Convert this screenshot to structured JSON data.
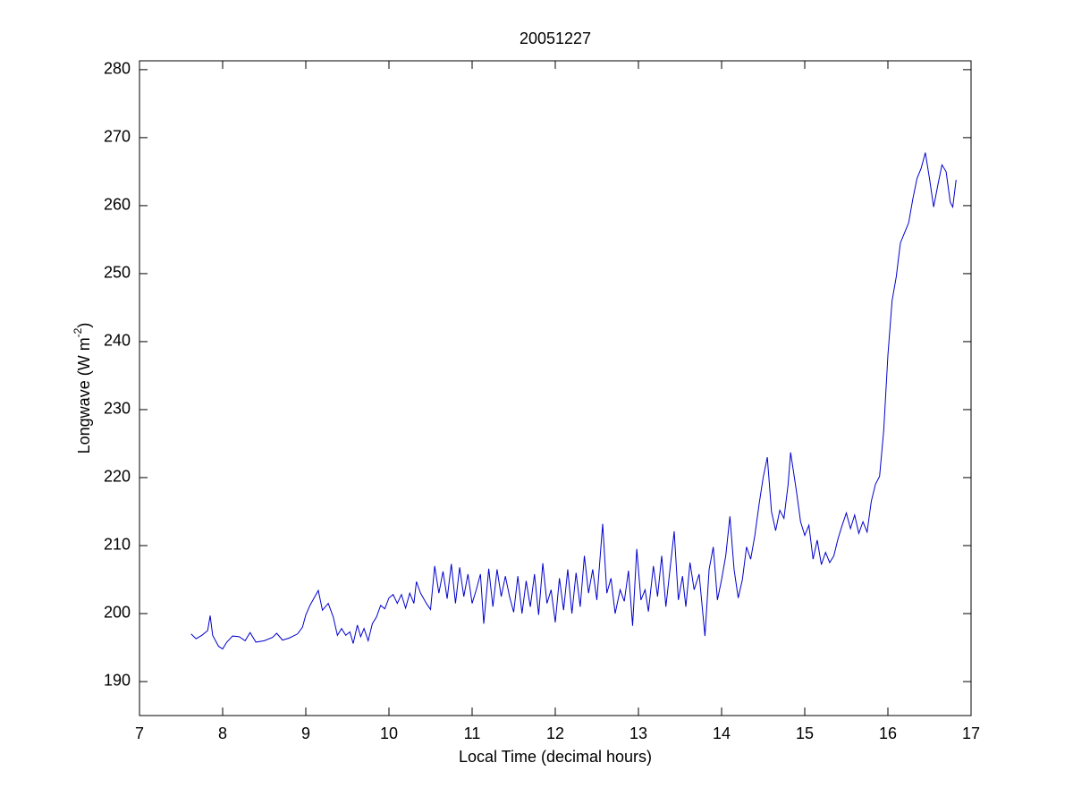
{
  "chart_data": {
    "type": "line",
    "title": "20051227",
    "x_label": "Local Time (decimal hours)",
    "y_label": {
      "text": "Longwave (W m",
      "sup": "-2",
      "end": ")"
    },
    "xlim": [
      7,
      17
    ],
    "xticks": [
      7,
      8,
      9,
      10,
      11,
      12,
      13,
      14,
      15,
      16,
      17
    ],
    "ylim": [
      185,
      281.3
    ],
    "yticks": [
      190,
      200,
      210,
      220,
      230,
      240,
      250,
      260,
      270,
      280
    ],
    "grid": false,
    "series": [
      {
        "color": "#0000cc",
        "x": [
          7.62,
          7.68,
          7.75,
          7.82,
          7.85,
          7.88,
          7.95,
          8.0,
          8.05,
          8.12,
          8.2,
          8.27,
          8.33,
          8.4,
          8.5,
          8.6,
          8.65,
          8.72,
          8.8,
          8.9,
          8.96,
          9.0,
          9.05,
          9.1,
          9.15,
          9.2,
          9.27,
          9.33,
          9.38,
          9.43,
          9.48,
          9.53,
          9.57,
          9.62,
          9.66,
          9.7,
          9.75,
          9.8,
          9.85,
          9.9,
          9.95,
          10.0,
          10.05,
          10.1,
          10.15,
          10.2,
          10.25,
          10.3,
          10.33,
          10.38,
          10.45,
          10.5,
          10.55,
          10.6,
          10.65,
          10.7,
          10.75,
          10.8,
          10.85,
          10.9,
          10.95,
          11.0,
          11.05,
          11.1,
          11.14,
          11.2,
          11.25,
          11.3,
          11.35,
          11.4,
          11.45,
          11.5,
          11.55,
          11.6,
          11.65,
          11.7,
          11.75,
          11.8,
          11.85,
          11.9,
          11.95,
          12.0,
          12.05,
          12.1,
          12.15,
          12.2,
          12.25,
          12.3,
          12.35,
          12.4,
          12.45,
          12.5,
          12.57,
          12.62,
          12.67,
          12.72,
          12.78,
          12.83,
          12.88,
          12.93,
          12.98,
          13.03,
          13.08,
          13.12,
          13.18,
          13.23,
          13.28,
          13.33,
          13.43,
          13.48,
          13.53,
          13.57,
          13.62,
          13.67,
          13.73,
          13.8,
          13.85,
          13.9,
          13.95,
          14.0,
          14.05,
          14.1,
          14.15,
          14.2,
          14.25,
          14.3,
          14.35,
          14.4,
          14.45,
          14.5,
          14.55,
          14.6,
          14.65,
          14.7,
          14.75,
          14.8,
          14.83,
          14.9,
          14.95,
          15.0,
          15.05,
          15.1,
          15.15,
          15.2,
          15.25,
          15.3,
          15.35,
          15.4,
          15.45,
          15.5,
          15.55,
          15.6,
          15.65,
          15.7,
          15.75,
          15.8,
          15.85,
          15.9,
          15.95,
          16.0,
          16.05,
          16.1,
          16.15,
          16.2,
          16.25,
          16.3,
          16.35,
          16.4,
          16.45,
          16.5,
          16.55,
          16.6,
          16.65,
          16.7,
          16.75,
          16.78,
          16.82
        ],
        "values": [
          197,
          196.3,
          196.8,
          197.5,
          199.7,
          196.8,
          195.2,
          194.8,
          195.8,
          196.7,
          196.6,
          196.0,
          197.2,
          195.8,
          196.0,
          196.5,
          197.1,
          196.1,
          196.4,
          197.0,
          198.0,
          199.8,
          201.2,
          202.3,
          203.4,
          200.5,
          201.5,
          199.5,
          196.8,
          197.8,
          196.8,
          197.3,
          195.6,
          198.3,
          196.6,
          197.8,
          196.0,
          198.5,
          199.5,
          201.2,
          200.7,
          202.3,
          202.8,
          201.5,
          202.8,
          200.8,
          203.0,
          201.5,
          204.7,
          203.0,
          201.5,
          200.6,
          207.0,
          203.0,
          206.2,
          202.2,
          207.3,
          201.5,
          206.8,
          202.5,
          205.8,
          201.5,
          203.5,
          205.8,
          198.5,
          206.6,
          201.0,
          206.5,
          202.5,
          205.5,
          202.5,
          200.2,
          205.5,
          200.0,
          204.8,
          201.0,
          205.8,
          199.8,
          207.4,
          201.5,
          203.5,
          198.7,
          205.2,
          200.5,
          206.5,
          200.0,
          206.0,
          201.0,
          208.5,
          203.0,
          206.5,
          202.0,
          213.2,
          203.0,
          205.2,
          200.0,
          203.5,
          201.8,
          206.3,
          198.2,
          209.5,
          202.0,
          203.5,
          200.3,
          207.0,
          202.5,
          208.5,
          201.0,
          212.1,
          202.0,
          205.5,
          201.0,
          207.5,
          203.5,
          205.8,
          196.7,
          206.5,
          209.8,
          202.0,
          205.0,
          208.5,
          214.3,
          206.5,
          202.3,
          205.0,
          209.8,
          208.0,
          211.5,
          216.0,
          220.0,
          223.0,
          215.0,
          212.2,
          215.2,
          214.0,
          219.0,
          223.7,
          218.0,
          213.5,
          211.5,
          213.0,
          208.0,
          210.8,
          207.2,
          209.0,
          207.5,
          208.5,
          211.0,
          213.0,
          214.8,
          212.5,
          214.5,
          211.8,
          213.5,
          212.0,
          216.5,
          219.0,
          220.2,
          227.0,
          238.0,
          246.0,
          249.5,
          254.5,
          256.0,
          257.5,
          261.0,
          264.0,
          265.5,
          267.8,
          264.0,
          259.8,
          263.0,
          266.0,
          265.0,
          260.5,
          259.8,
          263.8
        ]
      }
    ]
  }
}
